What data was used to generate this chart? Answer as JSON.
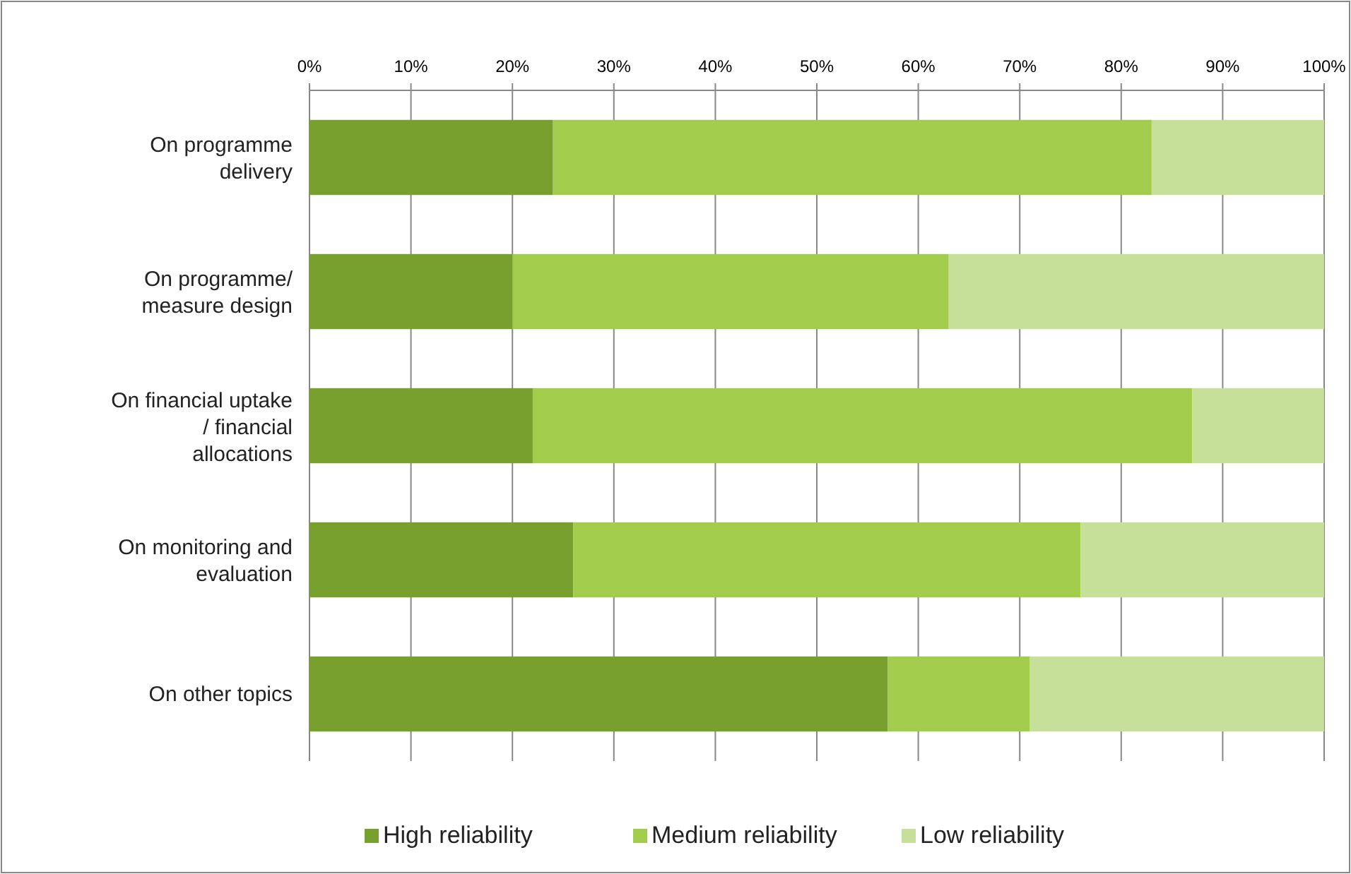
{
  "chart_data": {
    "type": "bar",
    "orientation": "horizontal",
    "stacked": true,
    "categories": [
      "On programme delivery",
      "On programme/ measure design",
      "On financial uptake / financial allocations",
      "On monitoring and evaluation",
      "On other topics"
    ],
    "series": [
      {
        "name": "High reliability",
        "color": "#77a02e",
        "values": [
          24,
          20,
          22,
          26,
          57
        ]
      },
      {
        "name": "Medium reliability",
        "color": "#a2cc4c",
        "values": [
          59,
          43,
          65,
          50,
          14
        ]
      },
      {
        "name": "Low reliability",
        "color": "#c6e09a",
        "values": [
          17,
          37,
          13,
          24,
          29
        ]
      }
    ],
    "xlim": [
      0,
      100
    ],
    "xticks": [
      {
        "value": 0,
        "label": "0%"
      },
      {
        "value": 10,
        "label": "10%"
      },
      {
        "value": 20,
        "label": "20%"
      },
      {
        "value": 30,
        "label": "30%"
      },
      {
        "value": 40,
        "label": "40%"
      },
      {
        "value": 50,
        "label": "50%"
      },
      {
        "value": 60,
        "label": "60%"
      },
      {
        "value": 70,
        "label": "70%"
      },
      {
        "value": 80,
        "label": "80%"
      },
      {
        "value": 90,
        "label": "90%"
      },
      {
        "value": 100,
        "label": "100%"
      }
    ],
    "grid": "x",
    "legend": "bottom"
  }
}
